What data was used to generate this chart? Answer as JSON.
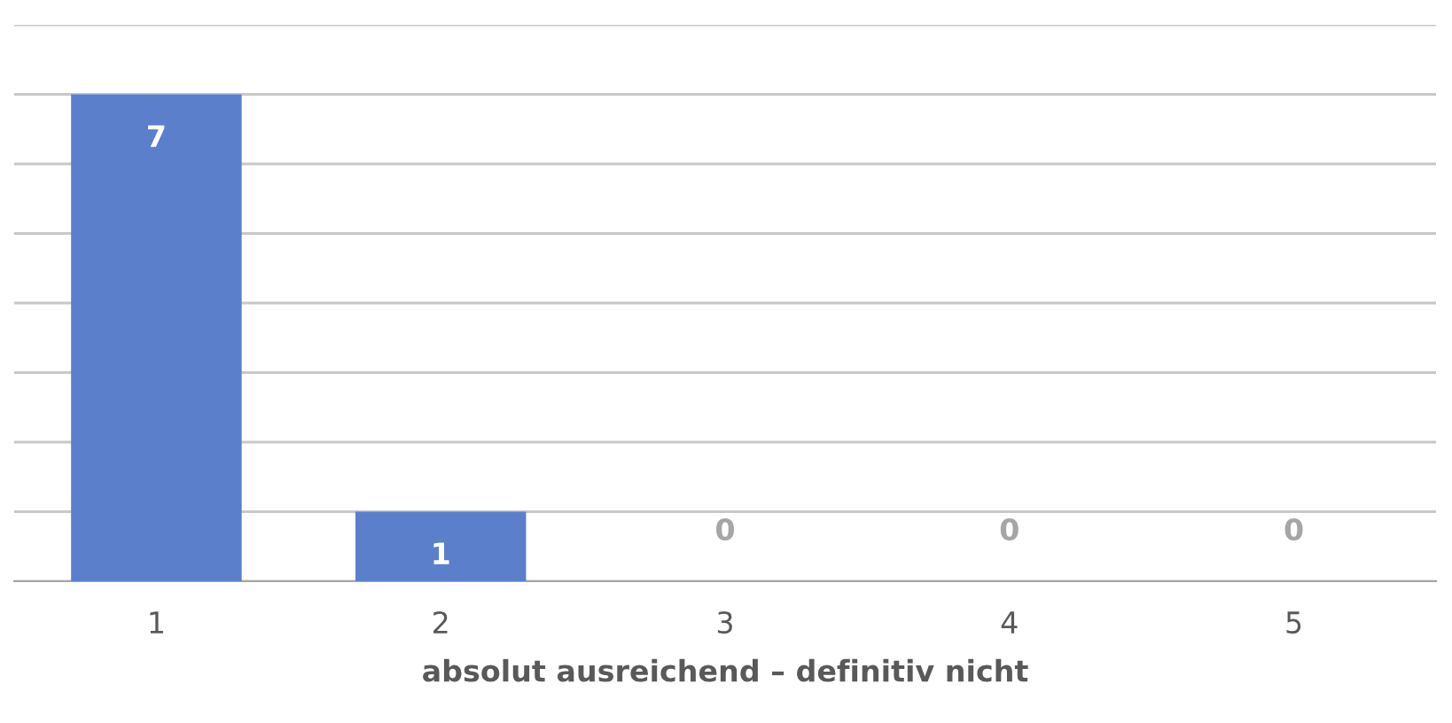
{
  "chart_data": {
    "type": "bar",
    "xlabel": "absolut ausreichend – definitiv nicht",
    "categories": [
      "1",
      "2",
      "3",
      "4",
      "5"
    ],
    "values": [
      7,
      1,
      0,
      0,
      0
    ],
    "color": "#5b7fcb",
    "ylim": [
      0,
      8
    ],
    "yticks": [
      {
        "value": 0,
        "label": null
      },
      {
        "value": 1,
        "label": null
      },
      {
        "value": 2,
        "label": null
      },
      {
        "value": 3,
        "label": null
      },
      {
        "value": 4,
        "label": null
      },
      {
        "value": 5,
        "label": null
      },
      {
        "value": 6,
        "label": null
      },
      {
        "value": 7,
        "label": null
      },
      {
        "value": 8,
        "label": null
      }
    ],
    "grid": "y",
    "tick_labels": "x",
    "data_labels": true
  }
}
